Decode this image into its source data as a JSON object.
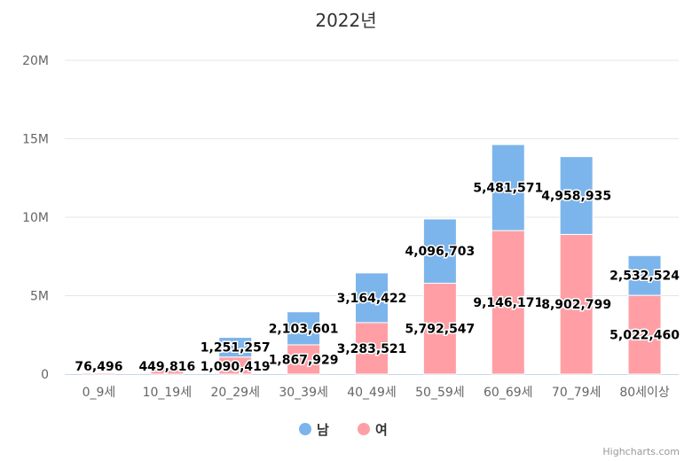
{
  "chart_data": {
    "type": "bar",
    "stacked": true,
    "title": "2022년",
    "categories": [
      "0_9세",
      "10_19세",
      "20_29세",
      "30_39세",
      "40_49세",
      "50_59세",
      "60_69세",
      "70_79세",
      "80세이상"
    ],
    "series": [
      {
        "name": "남",
        "color": "#7cb5ec",
        "values": [
          null,
          null,
          1251257,
          2103601,
          3164422,
          4096703,
          5481571,
          4958935,
          2532524
        ]
      },
      {
        "name": "여",
        "color": "#ff9fa5",
        "values": [
          76496,
          449816,
          1090419,
          1867929,
          3283521,
          5792547,
          9146171,
          8902799,
          5022460
        ]
      }
    ],
    "yticks": [
      "0",
      "5M",
      "10M",
      "15M",
      "20M"
    ],
    "ylim": [
      0,
      20000000
    ],
    "grid": true,
    "legend": "bottom-center",
    "credits": "Highcharts.com"
  }
}
